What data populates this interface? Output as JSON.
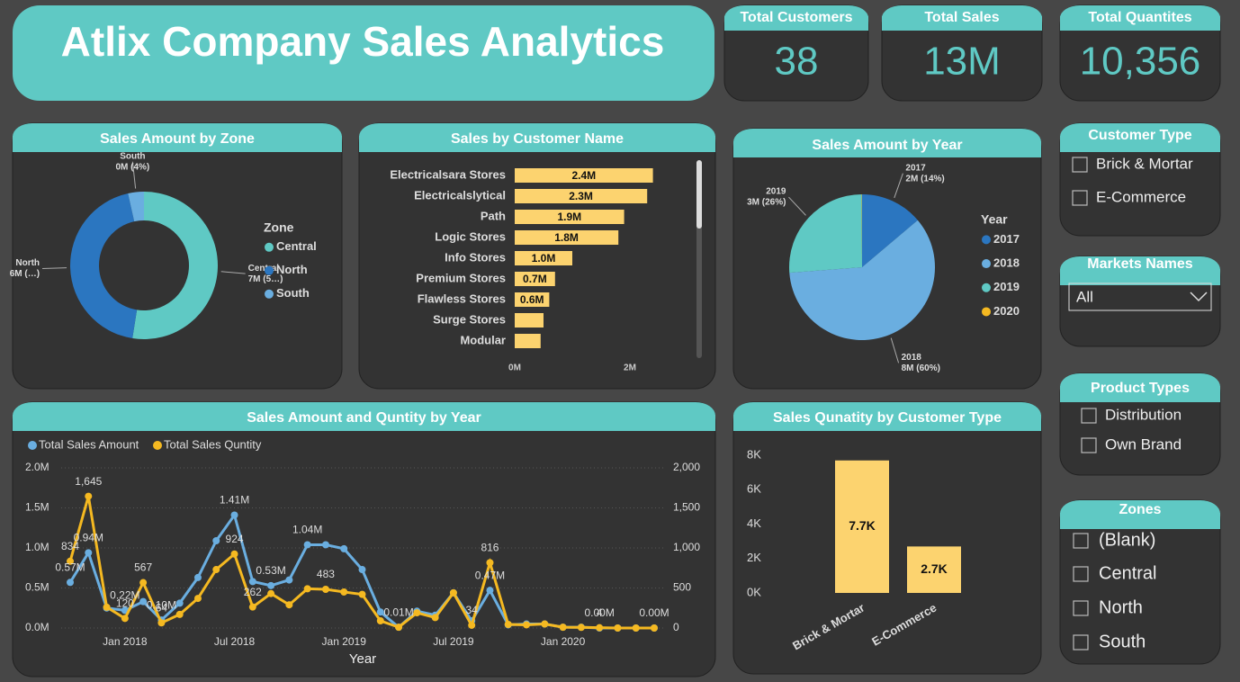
{
  "header": {
    "title": "Atlix Company Sales Analytics"
  },
  "kpis": [
    {
      "label": "Total Customers",
      "value": "38"
    },
    {
      "label": "Total Sales",
      "value": "13M"
    },
    {
      "label": "Total Quantites",
      "value": "10,356"
    }
  ],
  "slicers": {
    "customer_type": {
      "title": "Customer Type",
      "options": [
        "Brick & Mortar",
        "E-Commerce"
      ]
    },
    "markets": {
      "title": "Markets Names",
      "selected": "All"
    },
    "product_types": {
      "title": "Product Types",
      "options": [
        "Distribution",
        "Own Brand"
      ]
    },
    "zones": {
      "title": "Zones",
      "options": [
        "(Blank)",
        "Central",
        "North",
        "South"
      ]
    }
  },
  "chart_data": [
    {
      "type": "donut",
      "title": "Sales Amount by Zone",
      "legend_title": "Zone",
      "categories": [
        "Central",
        "North",
        "South"
      ],
      "values": [
        6.8,
        5.7,
        0.45
      ],
      "value_labels": [
        "7M (5…)",
        "6M (…)",
        "0M (4%)"
      ],
      "colors": [
        "#5fc9c4",
        "#2b76c0",
        "#6aaee0"
      ]
    },
    {
      "type": "bar",
      "orientation": "horizontal",
      "title": "Sales by Customer Name",
      "categories": [
        "Electricalsara Stores",
        "Electricalslytical",
        "Path",
        "Logic Stores",
        "Info Stores",
        "Premium Stores",
        "Flawless Stores",
        "Surge Stores",
        "Modular"
      ],
      "values": [
        2.4,
        2.3,
        1.9,
        1.8,
        1.0,
        0.7,
        0.6,
        0.5,
        0.45
      ],
      "value_labels": [
        "2.4M",
        "2.3M",
        "1.9M",
        "1.8M",
        "1.0M",
        "0.7M",
        "0.6M",
        null,
        null
      ],
      "color": "#fcd36f",
      "xlim": [
        0,
        3
      ],
      "xticks": [
        {
          "value": 0,
          "label": "0M"
        },
        {
          "value": 2,
          "label": "2M"
        }
      ]
    },
    {
      "type": "pie",
      "title": "Sales Amount by Year",
      "legend_title": "Year",
      "categories": [
        "2017",
        "2018",
        "2019",
        "2020"
      ],
      "values": [
        1.8,
        7.8,
        3.4,
        0.01
      ],
      "value_labels": [
        "2M (14%)",
        "8M (60%)",
        "3M (26%)",
        null
      ],
      "colors": [
        "#2b76c0",
        "#6aaee0",
        "#5fc9c4",
        "#f5b921"
      ]
    },
    {
      "type": "line",
      "title": "Sales Amount and Quntity by Year",
      "x_label": "Year",
      "x": [
        "2017-10",
        "2017-11",
        "2017-12",
        "2018-01",
        "2018-02",
        "2018-03",
        "2018-04",
        "2018-05",
        "2018-06",
        "2018-07",
        "2018-08",
        "2018-09",
        "2018-10",
        "2018-11",
        "2018-12",
        "2019-01",
        "2019-02",
        "2019-03",
        "2019-04",
        "2019-05",
        "2019-06",
        "2019-07",
        "2019-08",
        "2019-09",
        "2019-10",
        "2019-11",
        "2019-12",
        "2020-01",
        "2020-02",
        "2020-03",
        "2020-04",
        "2020-05",
        "2020-06"
      ],
      "xticks": [
        {
          "value": "2018-01",
          "label": "Jan 2018"
        },
        {
          "value": "2018-07",
          "label": "Jul 2018"
        },
        {
          "value": "2019-01",
          "label": "Jan 2019"
        },
        {
          "value": "2019-07",
          "label": "Jul 2019"
        },
        {
          "value": "2020-01",
          "label": "Jan 2020"
        }
      ],
      "ylim": [
        0,
        2
      ],
      "yticks": [
        {
          "value": 0,
          "label": "0.0M"
        },
        {
          "value": 0.5,
          "label": "0.5M"
        },
        {
          "value": 1,
          "label": "1.0M"
        },
        {
          "value": 1.5,
          "label": "1.5M"
        },
        {
          "value": 2,
          "label": "2.0M"
        }
      ],
      "y2lim": [
        0,
        2000
      ],
      "y2ticks": [
        0,
        500,
        {
          "value": 1000,
          "label": "1,000"
        },
        {
          "value": 1500,
          "label": "1,500"
        },
        {
          "value": 2000,
          "label": "2,000"
        }
      ],
      "grid": true,
      "series": [
        {
          "name": "Total Sales Amount",
          "color": "#6aaee0",
          "values": [
            0.57,
            0.94,
            0.25,
            0.22,
            0.33,
            0.1,
            0.31,
            0.63,
            1.09,
            1.41,
            0.58,
            0.53,
            0.6,
            1.04,
            1.04,
            0.99,
            0.73,
            0.2,
            0.01,
            0.21,
            0.16,
            0.44,
            0.09,
            0.47,
            0.04,
            0.05,
            0.05,
            0.01,
            0.01,
            0,
            0,
            0,
            0
          ],
          "value_labels": [
            "0.57M",
            "0.94M",
            null,
            "0.22M",
            null,
            "0.10M",
            null,
            null,
            null,
            "1.41M",
            null,
            "0.53M",
            null,
            "1.04M",
            null,
            null,
            null,
            null,
            "0.01M",
            null,
            null,
            null,
            null,
            "0.47M",
            null,
            null,
            null,
            null,
            null,
            "0.00M",
            null,
            null,
            "0.00M"
          ]
        },
        {
          "name": "Total Sales Quntity",
          "color": "#f5b921",
          "axis": "y2",
          "values": [
            834,
            1645,
            260,
            120,
            567,
            64,
            170,
            370,
            730,
            924,
            262,
            430,
            290,
            490,
            483,
            450,
            420,
            90,
            10,
            190,
            130,
            440,
            34,
            816,
            45,
            40,
            50,
            10,
            8,
            4,
            0,
            0,
            0
          ],
          "value_labels": [
            "834",
            "1,645",
            null,
            "120",
            "567",
            "64",
            null,
            null,
            null,
            "924",
            "262",
            null,
            null,
            null,
            "483",
            null,
            null,
            null,
            null,
            null,
            null,
            null,
            "34",
            "816",
            null,
            null,
            null,
            null,
            null,
            "4",
            null,
            null,
            null
          ]
        }
      ]
    },
    {
      "type": "bar",
      "title": "Sales Qunatity by Customer Type",
      "categories": [
        "Brick & Mortar",
        "E-Commerce"
      ],
      "values": [
        7.7,
        2.7
      ],
      "value_labels": [
        "7.7K",
        "2.7K"
      ],
      "color": "#fcd36f",
      "ylim": [
        0,
        8
      ],
      "yticks": [
        {
          "value": 0,
          "label": "0K"
        },
        {
          "value": 2,
          "label": "2K"
        },
        {
          "value": 4,
          "label": "4K"
        },
        {
          "value": 6,
          "label": "6K"
        },
        {
          "value": 8,
          "label": "8K"
        }
      ]
    }
  ]
}
